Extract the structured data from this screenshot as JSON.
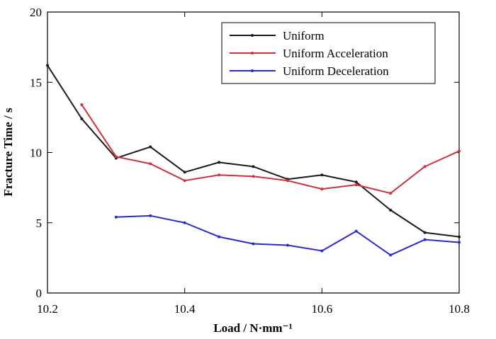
{
  "chart_data": {
    "type": "line",
    "xlabel": "Load / N·mm⁻¹",
    "ylabel": "Fracture Time / s",
    "xlim": [
      10.2,
      10.8
    ],
    "ylim": [
      0,
      20
    ],
    "xticks": [
      10.2,
      10.4,
      10.6,
      10.8
    ],
    "xtick_labels": [
      "10.2",
      "10.4",
      "10.6",
      "10.8"
    ],
    "yticks": [
      0,
      5,
      10,
      15,
      20
    ],
    "ytick_labels": [
      "0",
      "5",
      "10",
      "15",
      "20"
    ],
    "grid": false,
    "legend_position": "top-right",
    "series": [
      {
        "name": "Uniform",
        "color": "#1a1a1a",
        "x": [
          10.2,
          10.25,
          10.3,
          10.35,
          10.4,
          10.45,
          10.5,
          10.55,
          10.6,
          10.65,
          10.7,
          10.75,
          10.8
        ],
        "values": [
          16.2,
          12.4,
          9.6,
          10.4,
          8.6,
          9.3,
          9.0,
          8.1,
          8.4,
          7.9,
          5.9,
          4.3,
          4.0
        ]
      },
      {
        "name": "Uniform Acceleration",
        "color": "#d0303a",
        "x": [
          10.25,
          10.3,
          10.35,
          10.4,
          10.45,
          10.5,
          10.55,
          10.6,
          10.65,
          10.7,
          10.75,
          10.8
        ],
        "values": [
          13.4,
          9.7,
          9.2,
          8.0,
          8.4,
          8.3,
          8.0,
          7.4,
          7.7,
          7.1,
          9.0,
          10.1
        ]
      },
      {
        "name": "Uniform Deceleration",
        "color": "#2a2ad0",
        "x": [
          10.3,
          10.35,
          10.4,
          10.45,
          10.5,
          10.55,
          10.6,
          10.65,
          10.7,
          10.75,
          10.8
        ],
        "values": [
          5.4,
          5.5,
          5.0,
          4.0,
          3.5,
          3.4,
          3.0,
          4.4,
          2.7,
          3.8,
          3.6
        ]
      }
    ]
  }
}
